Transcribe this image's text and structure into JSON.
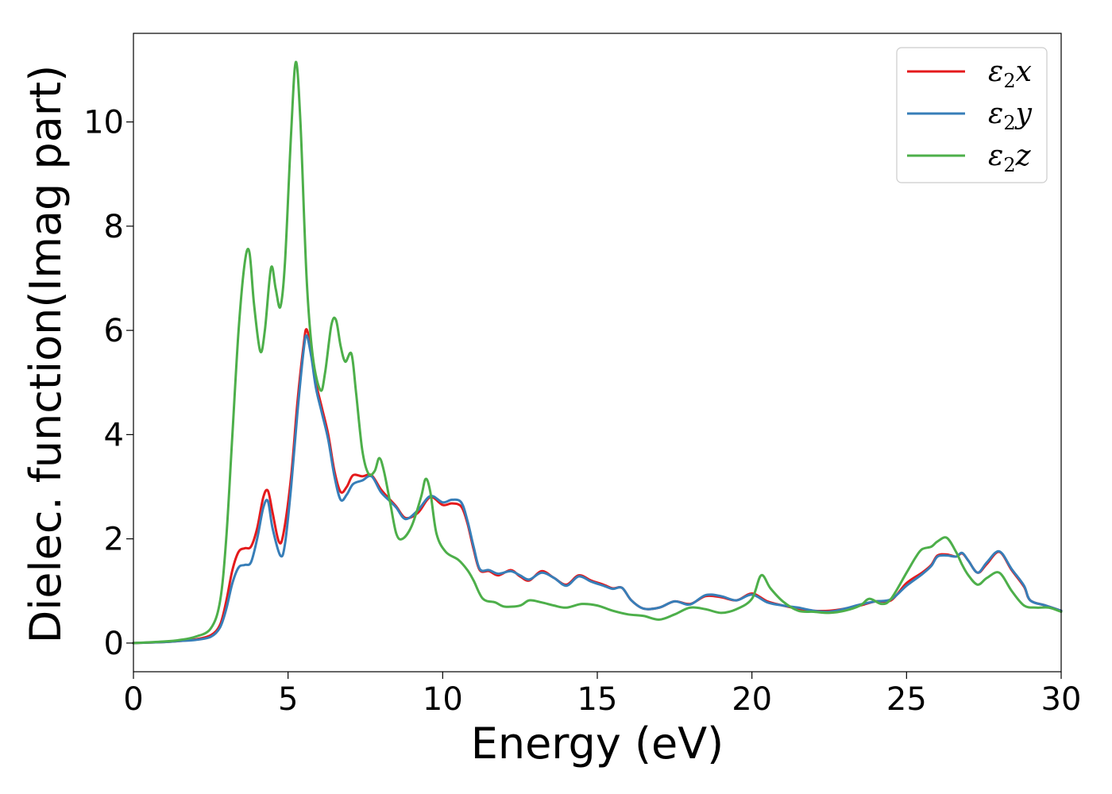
{
  "chart_data": {
    "type": "line",
    "xlabel": "Energy (eV)",
    "ylabel": "Dielec. function(Imag part)",
    "xlim": [
      0,
      30
    ],
    "ylim": [
      -0.55,
      11.7
    ],
    "xticks": [
      0,
      5,
      10,
      15,
      20,
      25,
      30
    ],
    "yticks": [
      0,
      2,
      4,
      6,
      8,
      10
    ],
    "grid": false,
    "legend_position": "top-right",
    "series": [
      {
        "name": "ε2x",
        "legend_symbol": "ε",
        "legend_sub": "2",
        "legend_var": "x",
        "color": "#e41a1c",
        "points": [
          [
            0,
            0
          ],
          [
            1,
            0.02
          ],
          [
            1.5,
            0.04
          ],
          [
            2,
            0.07
          ],
          [
            2.5,
            0.15
          ],
          [
            2.8,
            0.35
          ],
          [
            3,
            0.8
          ],
          [
            3.2,
            1.4
          ],
          [
            3.4,
            1.75
          ],
          [
            3.6,
            1.82
          ],
          [
            3.8,
            1.85
          ],
          [
            4,
            2.2
          ],
          [
            4.2,
            2.8
          ],
          [
            4.35,
            2.92
          ],
          [
            4.5,
            2.5
          ],
          [
            4.7,
            1.95
          ],
          [
            4.85,
            2.1
          ],
          [
            5.1,
            3.2
          ],
          [
            5.3,
            4.6
          ],
          [
            5.5,
            5.7
          ],
          [
            5.6,
            6.02
          ],
          [
            5.75,
            5.6
          ],
          [
            5.9,
            5.0
          ],
          [
            6.1,
            4.5
          ],
          [
            6.3,
            4.0
          ],
          [
            6.5,
            3.3
          ],
          [
            6.7,
            2.9
          ],
          [
            6.9,
            3.0
          ],
          [
            7.1,
            3.22
          ],
          [
            7.4,
            3.2
          ],
          [
            7.7,
            3.22
          ],
          [
            8,
            2.95
          ],
          [
            8.3,
            2.75
          ],
          [
            8.5,
            2.62
          ],
          [
            8.8,
            2.4
          ],
          [
            9.2,
            2.5
          ],
          [
            9.6,
            2.8
          ],
          [
            10,
            2.65
          ],
          [
            10.3,
            2.68
          ],
          [
            10.6,
            2.62
          ],
          [
            10.8,
            2.3
          ],
          [
            11,
            1.8
          ],
          [
            11.2,
            1.4
          ],
          [
            11.5,
            1.38
          ],
          [
            11.8,
            1.3
          ],
          [
            12.2,
            1.4
          ],
          [
            12.5,
            1.28
          ],
          [
            12.8,
            1.2
          ],
          [
            13.2,
            1.38
          ],
          [
            13.6,
            1.25
          ],
          [
            14,
            1.12
          ],
          [
            14.4,
            1.3
          ],
          [
            14.8,
            1.2
          ],
          [
            15.2,
            1.12
          ],
          [
            15.5,
            1.05
          ],
          [
            15.8,
            1.06
          ],
          [
            16.1,
            0.82
          ],
          [
            16.5,
            0.66
          ],
          [
            17,
            0.68
          ],
          [
            17.5,
            0.8
          ],
          [
            18,
            0.75
          ],
          [
            18.5,
            0.9
          ],
          [
            19,
            0.88
          ],
          [
            19.5,
            0.82
          ],
          [
            20,
            0.95
          ],
          [
            20.5,
            0.8
          ],
          [
            21,
            0.72
          ],
          [
            21.5,
            0.66
          ],
          [
            22,
            0.62
          ],
          [
            22.5,
            0.62
          ],
          [
            23,
            0.66
          ],
          [
            23.5,
            0.72
          ],
          [
            24,
            0.8
          ],
          [
            24.5,
            0.82
          ],
          [
            25,
            1.15
          ],
          [
            25.5,
            1.35
          ],
          [
            25.8,
            1.5
          ],
          [
            26,
            1.68
          ],
          [
            26.3,
            1.7
          ],
          [
            26.6,
            1.66
          ],
          [
            26.8,
            1.72
          ],
          [
            27,
            1.58
          ],
          [
            27.3,
            1.35
          ],
          [
            27.6,
            1.52
          ],
          [
            28,
            1.75
          ],
          [
            28.4,
            1.4
          ],
          [
            28.8,
            1.08
          ],
          [
            29,
            0.82
          ],
          [
            29.5,
            0.72
          ],
          [
            30,
            0.62
          ]
        ]
      },
      {
        "name": "ε2y",
        "legend_symbol": "ε",
        "legend_sub": "2",
        "legend_var": "y",
        "color": "#377eb8",
        "points": [
          [
            0,
            0
          ],
          [
            1,
            0.02
          ],
          [
            1.5,
            0.04
          ],
          [
            2,
            0.06
          ],
          [
            2.5,
            0.12
          ],
          [
            2.8,
            0.3
          ],
          [
            3,
            0.65
          ],
          [
            3.2,
            1.15
          ],
          [
            3.4,
            1.45
          ],
          [
            3.6,
            1.5
          ],
          [
            3.8,
            1.55
          ],
          [
            4,
            2.0
          ],
          [
            4.2,
            2.6
          ],
          [
            4.35,
            2.72
          ],
          [
            4.5,
            2.2
          ],
          [
            4.75,
            1.68
          ],
          [
            4.9,
            1.9
          ],
          [
            5.1,
            3.0
          ],
          [
            5.3,
            4.4
          ],
          [
            5.5,
            5.6
          ],
          [
            5.6,
            5.9
          ],
          [
            5.75,
            5.5
          ],
          [
            5.9,
            4.9
          ],
          [
            6.1,
            4.4
          ],
          [
            6.3,
            3.9
          ],
          [
            6.5,
            3.2
          ],
          [
            6.7,
            2.75
          ],
          [
            6.9,
            2.85
          ],
          [
            7.1,
            3.05
          ],
          [
            7.4,
            3.12
          ],
          [
            7.7,
            3.2
          ],
          [
            8,
            2.9
          ],
          [
            8.3,
            2.72
          ],
          [
            8.5,
            2.6
          ],
          [
            8.8,
            2.38
          ],
          [
            9.2,
            2.55
          ],
          [
            9.6,
            2.82
          ],
          [
            10,
            2.7
          ],
          [
            10.3,
            2.75
          ],
          [
            10.6,
            2.7
          ],
          [
            10.8,
            2.35
          ],
          [
            11,
            1.85
          ],
          [
            11.2,
            1.42
          ],
          [
            11.5,
            1.4
          ],
          [
            11.8,
            1.33
          ],
          [
            12.2,
            1.38
          ],
          [
            12.5,
            1.3
          ],
          [
            12.8,
            1.22
          ],
          [
            13.2,
            1.35
          ],
          [
            13.6,
            1.25
          ],
          [
            14,
            1.1
          ],
          [
            14.4,
            1.28
          ],
          [
            14.8,
            1.18
          ],
          [
            15.2,
            1.1
          ],
          [
            15.5,
            1.04
          ],
          [
            15.8,
            1.06
          ],
          [
            16.1,
            0.82
          ],
          [
            16.5,
            0.66
          ],
          [
            17,
            0.68
          ],
          [
            17.5,
            0.8
          ],
          [
            18,
            0.74
          ],
          [
            18.5,
            0.92
          ],
          [
            19,
            0.9
          ],
          [
            19.5,
            0.82
          ],
          [
            20,
            0.93
          ],
          [
            20.5,
            0.78
          ],
          [
            21,
            0.72
          ],
          [
            21.5,
            0.68
          ],
          [
            22,
            0.62
          ],
          [
            22.5,
            0.6
          ],
          [
            23,
            0.66
          ],
          [
            23.5,
            0.74
          ],
          [
            24,
            0.8
          ],
          [
            24.5,
            0.84
          ],
          [
            25,
            1.1
          ],
          [
            25.5,
            1.32
          ],
          [
            25.8,
            1.48
          ],
          [
            26,
            1.66
          ],
          [
            26.3,
            1.68
          ],
          [
            26.6,
            1.66
          ],
          [
            26.8,
            1.73
          ],
          [
            27,
            1.58
          ],
          [
            27.3,
            1.35
          ],
          [
            27.6,
            1.55
          ],
          [
            28,
            1.76
          ],
          [
            28.4,
            1.42
          ],
          [
            28.8,
            1.1
          ],
          [
            29,
            0.82
          ],
          [
            29.5,
            0.72
          ],
          [
            30,
            0.62
          ]
        ]
      },
      {
        "name": "ε2z",
        "legend_symbol": "ε",
        "legend_sub": "2",
        "legend_var": "z",
        "color": "#4daf4a",
        "points": [
          [
            0,
            0
          ],
          [
            1,
            0.03
          ],
          [
            1.5,
            0.06
          ],
          [
            2,
            0.12
          ],
          [
            2.5,
            0.28
          ],
          [
            2.8,
            0.8
          ],
          [
            3,
            2.0
          ],
          [
            3.2,
            4.0
          ],
          [
            3.4,
            6.0
          ],
          [
            3.6,
            7.3
          ],
          [
            3.75,
            7.5
          ],
          [
            3.9,
            6.5
          ],
          [
            4.1,
            5.6
          ],
          [
            4.25,
            6.0
          ],
          [
            4.45,
            7.2
          ],
          [
            4.6,
            6.8
          ],
          [
            4.75,
            6.45
          ],
          [
            4.9,
            7.3
          ],
          [
            5.1,
            9.8
          ],
          [
            5.25,
            11.15
          ],
          [
            5.4,
            10.0
          ],
          [
            5.6,
            7.0
          ],
          [
            5.8,
            5.5
          ],
          [
            6.05,
            4.85
          ],
          [
            6.2,
            5.2
          ],
          [
            6.4,
            6.1
          ],
          [
            6.55,
            6.2
          ],
          [
            6.7,
            5.7
          ],
          [
            6.85,
            5.4
          ],
          [
            7.05,
            5.55
          ],
          [
            7.2,
            4.8
          ],
          [
            7.4,
            3.7
          ],
          [
            7.6,
            3.25
          ],
          [
            7.8,
            3.3
          ],
          [
            7.95,
            3.55
          ],
          [
            8.1,
            3.3
          ],
          [
            8.3,
            2.7
          ],
          [
            8.5,
            2.1
          ],
          [
            8.7,
            2.0
          ],
          [
            9,
            2.25
          ],
          [
            9.3,
            2.8
          ],
          [
            9.45,
            3.15
          ],
          [
            9.6,
            2.9
          ],
          [
            9.8,
            2.1
          ],
          [
            10.1,
            1.75
          ],
          [
            10.5,
            1.6
          ],
          [
            10.8,
            1.4
          ],
          [
            11,
            1.2
          ],
          [
            11.3,
            0.85
          ],
          [
            11.7,
            0.78
          ],
          [
            12,
            0.7
          ],
          [
            12.5,
            0.72
          ],
          [
            12.8,
            0.82
          ],
          [
            13.2,
            0.78
          ],
          [
            13.6,
            0.72
          ],
          [
            14,
            0.68
          ],
          [
            14.5,
            0.75
          ],
          [
            15,
            0.72
          ],
          [
            15.5,
            0.62
          ],
          [
            16,
            0.55
          ],
          [
            16.5,
            0.52
          ],
          [
            17,
            0.45
          ],
          [
            17.5,
            0.55
          ],
          [
            18,
            0.68
          ],
          [
            18.5,
            0.65
          ],
          [
            19,
            0.58
          ],
          [
            19.5,
            0.65
          ],
          [
            20,
            0.85
          ],
          [
            20.3,
            1.3
          ],
          [
            20.6,
            1.05
          ],
          [
            21,
            0.8
          ],
          [
            21.5,
            0.62
          ],
          [
            22,
            0.6
          ],
          [
            22.5,
            0.58
          ],
          [
            23,
            0.62
          ],
          [
            23.5,
            0.72
          ],
          [
            23.8,
            0.85
          ],
          [
            24.2,
            0.75
          ],
          [
            24.5,
            0.85
          ],
          [
            25,
            1.35
          ],
          [
            25.3,
            1.65
          ],
          [
            25.5,
            1.8
          ],
          [
            25.8,
            1.85
          ],
          [
            26,
            1.95
          ],
          [
            26.3,
            2.02
          ],
          [
            26.6,
            1.75
          ],
          [
            26.8,
            1.5
          ],
          [
            27,
            1.3
          ],
          [
            27.3,
            1.12
          ],
          [
            27.6,
            1.25
          ],
          [
            28,
            1.35
          ],
          [
            28.4,
            1.0
          ],
          [
            28.8,
            0.72
          ],
          [
            29.2,
            0.68
          ],
          [
            29.6,
            0.68
          ],
          [
            30,
            0.6
          ]
        ]
      }
    ]
  }
}
